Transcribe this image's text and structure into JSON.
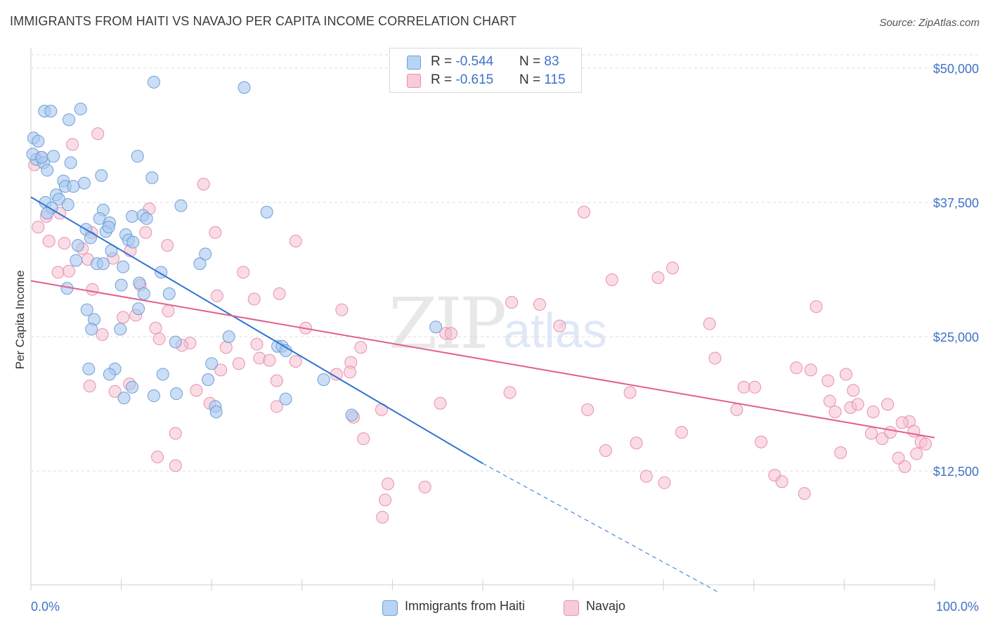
{
  "title": "IMMIGRANTS FROM HAITI VS NAVAJO PER CAPITA INCOME CORRELATION CHART",
  "source": "Source: ZipAtlas.com",
  "watermark": {
    "zip": "ZIP",
    "atlas": "atlas"
  },
  "legend": {
    "series1": {
      "r_label": "R = ",
      "r_value": "-0.544",
      "n_label": "N = ",
      "n_value": "83"
    },
    "series2": {
      "r_label": "R = ",
      "r_value": "-0.615",
      "n_label": "N = ",
      "n_value": "115"
    }
  },
  "bottom_legend": {
    "series1": "Immigrants from Haiti",
    "series2": "Navajo"
  },
  "colors": {
    "haiti_fill": "#a9c8f0",
    "haiti_stroke": "#6f9fd8",
    "haiti_line": "#2f74d0",
    "navajo_fill": "#f6bfd0",
    "navajo_stroke": "#e890ad",
    "navajo_line": "#e0608e",
    "tick_text": "#3f72c8",
    "grid": "#dddddd"
  },
  "chart_data": {
    "type": "scatter",
    "title": "IMMIGRANTS FROM HAITI VS NAVAJO PER CAPITA INCOME CORRELATION CHART",
    "xlabel": "",
    "ylabel": "Per Capita Income",
    "xlim": [
      0,
      100
    ],
    "ylim": [
      0,
      52500
    ],
    "y_ticks": [
      12500,
      25000,
      37500,
      50000
    ],
    "y_tick_labels": [
      "$12,500",
      "$25,000",
      "$37,500",
      "$50,000"
    ],
    "x_tick_labels": [
      "0.0%",
      "100.0%"
    ],
    "grid": true,
    "legend_position": "top-center",
    "series": [
      {
        "name": "Immigrants from Haiti",
        "r": -0.544,
        "n": 83,
        "trend": {
          "x0": 0,
          "y0": 38000,
          "x1": 50,
          "y1": 13200,
          "dashed_to_x": 76,
          "dashed_to_y": 0
        },
        "points": [
          [
            0.3,
            43500
          ],
          [
            0.8,
            43200
          ],
          [
            1.5,
            46000
          ],
          [
            2.2,
            46000
          ],
          [
            4.2,
            45200
          ],
          [
            5.5,
            46200
          ],
          [
            0.6,
            41500
          ],
          [
            1.4,
            41200
          ],
          [
            1.8,
            40500
          ],
          [
            2.5,
            41800
          ],
          [
            4.4,
            41200
          ],
          [
            7.8,
            40000
          ],
          [
            11.8,
            41800
          ],
          [
            13.4,
            39800
          ],
          [
            13.6,
            48700
          ],
          [
            23.6,
            48200
          ],
          [
            3.6,
            39500
          ],
          [
            3.8,
            39000
          ],
          [
            4.7,
            39000
          ],
          [
            2.8,
            38200
          ],
          [
            3.1,
            37800
          ],
          [
            1.6,
            37500
          ],
          [
            4.1,
            37300
          ],
          [
            2.3,
            37000
          ],
          [
            1.8,
            36500
          ],
          [
            8.0,
            36800
          ],
          [
            7.6,
            36000
          ],
          [
            11.2,
            36200
          ],
          [
            12.4,
            36300
          ],
          [
            12.8,
            36000
          ],
          [
            16.6,
            37200
          ],
          [
            26.1,
            36600
          ],
          [
            8.7,
            35600
          ],
          [
            6.1,
            35000
          ],
          [
            8.3,
            34800
          ],
          [
            8.6,
            35200
          ],
          [
            10.5,
            34500
          ],
          [
            6.6,
            34200
          ],
          [
            10.8,
            34000
          ],
          [
            11.3,
            33800
          ],
          [
            5.2,
            33500
          ],
          [
            8.9,
            33000
          ],
          [
            5.0,
            32100
          ],
          [
            7.3,
            31800
          ],
          [
            8.0,
            31800
          ],
          [
            10.2,
            31500
          ],
          [
            14.4,
            31000
          ],
          [
            18.7,
            31800
          ],
          [
            19.3,
            32700
          ],
          [
            4.0,
            29500
          ],
          [
            10.0,
            29800
          ],
          [
            12.0,
            30000
          ],
          [
            12.5,
            29000
          ],
          [
            15.3,
            29000
          ],
          [
            6.2,
            27500
          ],
          [
            11.9,
            27600
          ],
          [
            7.0,
            26600
          ],
          [
            9.9,
            25700
          ],
          [
            6.7,
            25700
          ],
          [
            16.0,
            24500
          ],
          [
            21.9,
            25000
          ],
          [
            27.3,
            24100
          ],
          [
            27.8,
            24100
          ],
          [
            28.2,
            23700
          ],
          [
            44.8,
            25900
          ],
          [
            6.4,
            22000
          ],
          [
            9.3,
            22000
          ],
          [
            8.7,
            21500
          ],
          [
            14.6,
            21500
          ],
          [
            20.0,
            22500
          ],
          [
            19.6,
            21000
          ],
          [
            32.4,
            21000
          ],
          [
            11.2,
            20300
          ],
          [
            10.3,
            19300
          ],
          [
            13.6,
            19500
          ],
          [
            16.1,
            19700
          ],
          [
            20.4,
            18500
          ],
          [
            20.5,
            18000
          ],
          [
            28.2,
            19200
          ],
          [
            35.5,
            17700
          ],
          [
            0.2,
            42000
          ],
          [
            1.2,
            41700
          ],
          [
            5.9,
            39300
          ]
        ]
      },
      {
        "name": "Navajo",
        "r": -0.615,
        "n": 115,
        "trend": {
          "x0": 0,
          "y0": 30200,
          "x1": 100,
          "y1": 15600
        },
        "points": [
          [
            7.4,
            43900
          ],
          [
            4.6,
            42900
          ],
          [
            1.1,
            41700
          ],
          [
            0.4,
            41000
          ],
          [
            19.1,
            39200
          ],
          [
            3.2,
            36500
          ],
          [
            13.1,
            36900
          ],
          [
            1.7,
            36200
          ],
          [
            0.8,
            35200
          ],
          [
            6.7,
            34700
          ],
          [
            12.7,
            34700
          ],
          [
            20.4,
            34700
          ],
          [
            2.0,
            33900
          ],
          [
            3.7,
            33700
          ],
          [
            15.1,
            33500
          ],
          [
            29.3,
            33900
          ],
          [
            5.7,
            33200
          ],
          [
            11.0,
            33000
          ],
          [
            6.3,
            32200
          ],
          [
            9.1,
            32300
          ],
          [
            3.0,
            31000
          ],
          [
            4.2,
            31100
          ],
          [
            23.5,
            31000
          ],
          [
            12.1,
            29800
          ],
          [
            27.5,
            29000
          ],
          [
            6.8,
            29400
          ],
          [
            20.6,
            28800
          ],
          [
            24.7,
            28500
          ],
          [
            34.4,
            27500
          ],
          [
            11.6,
            27000
          ],
          [
            10.2,
            26800
          ],
          [
            15.2,
            27400
          ],
          [
            13.8,
            25800
          ],
          [
            7.9,
            25200
          ],
          [
            14.2,
            24800
          ],
          [
            17.6,
            24400
          ],
          [
            16.7,
            24200
          ],
          [
            21.6,
            24000
          ],
          [
            25.0,
            24300
          ],
          [
            30.4,
            25800
          ],
          [
            33.8,
            21500
          ],
          [
            36.5,
            24000
          ],
          [
            35.4,
            22600
          ],
          [
            25.3,
            23000
          ],
          [
            26.4,
            22800
          ],
          [
            27.2,
            20900
          ],
          [
            29.3,
            22700
          ],
          [
            18.3,
            20000
          ],
          [
            19.8,
            18800
          ],
          [
            10.9,
            20600
          ],
          [
            9.3,
            19900
          ],
          [
            6.5,
            20400
          ],
          [
            21.0,
            21900
          ],
          [
            23.0,
            22500
          ],
          [
            27.2,
            18500
          ],
          [
            35.7,
            17500
          ],
          [
            38.8,
            18200
          ],
          [
            39.5,
            11300
          ],
          [
            39.2,
            9800
          ],
          [
            38.9,
            8200
          ],
          [
            36.8,
            15500
          ],
          [
            45.3,
            18800
          ],
          [
            43.6,
            11000
          ],
          [
            14.0,
            13800
          ],
          [
            16.0,
            13000
          ],
          [
            16.0,
            16000
          ],
          [
            35.3,
            21700
          ],
          [
            45.9,
            25300
          ],
          [
            46.5,
            25300
          ],
          [
            53.0,
            19800
          ],
          [
            53.2,
            28200
          ],
          [
            56.3,
            28000
          ],
          [
            58.5,
            26000
          ],
          [
            61.2,
            36600
          ],
          [
            61.6,
            18200
          ],
          [
            63.6,
            14400
          ],
          [
            64.3,
            30300
          ],
          [
            66.3,
            19800
          ],
          [
            67.0,
            15100
          ],
          [
            68.1,
            12000
          ],
          [
            69.4,
            30500
          ],
          [
            70.1,
            11400
          ],
          [
            71.0,
            31400
          ],
          [
            72.0,
            16100
          ],
          [
            75.1,
            26200
          ],
          [
            75.7,
            23000
          ],
          [
            78.1,
            18200
          ],
          [
            78.9,
            20300
          ],
          [
            80.1,
            20300
          ],
          [
            80.8,
            15200
          ],
          [
            82.3,
            12100
          ],
          [
            83.1,
            11500
          ],
          [
            84.7,
            22100
          ],
          [
            85.6,
            10400
          ],
          [
            86.3,
            21900
          ],
          [
            86.9,
            27800
          ],
          [
            88.2,
            20900
          ],
          [
            88.4,
            19000
          ],
          [
            89.0,
            18000
          ],
          [
            89.6,
            14200
          ],
          [
            90.2,
            21500
          ],
          [
            90.7,
            18400
          ],
          [
            91.0,
            20000
          ],
          [
            91.5,
            18700
          ],
          [
            93.0,
            16000
          ],
          [
            93.2,
            18000
          ],
          [
            94.2,
            15500
          ],
          [
            94.8,
            18700
          ],
          [
            95.1,
            16100
          ],
          [
            96.0,
            13700
          ],
          [
            96.7,
            12900
          ],
          [
            97.2,
            17100
          ],
          [
            97.7,
            16200
          ],
          [
            98.0,
            14100
          ],
          [
            98.5,
            15200
          ],
          [
            99.0,
            15000
          ],
          [
            96.4,
            17000
          ]
        ]
      }
    ]
  }
}
